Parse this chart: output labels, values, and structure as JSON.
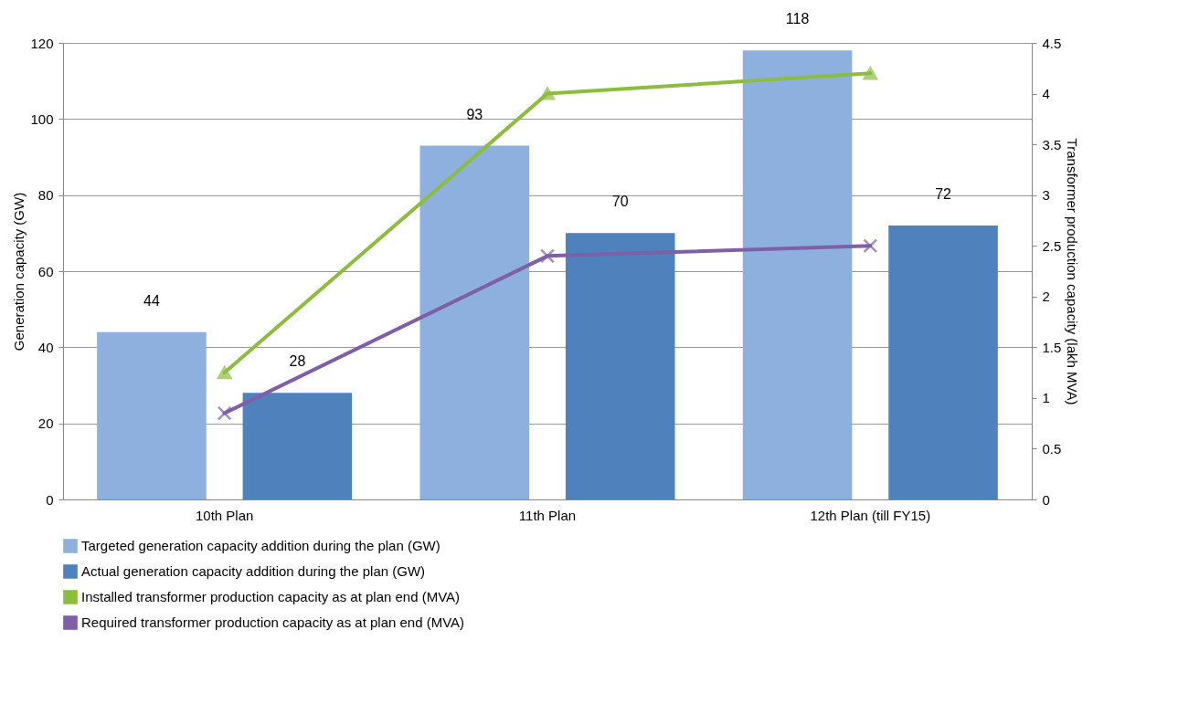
{
  "chart_data": {
    "type": "bar",
    "categories": [
      "10th Plan",
      "11th Plan",
      "12th Plan (till  FY15)"
    ],
    "ylabel": "Generation capacity (GW)",
    "y2label": "Transformer production capacity (lakh MVA)",
    "ylim": [
      0,
      120
    ],
    "yticks": [
      0,
      20,
      40,
      60,
      80,
      100,
      120
    ],
    "y2lim": [
      0,
      4.5
    ],
    "y2ticks": [
      0,
      0.5,
      1,
      1.5,
      2,
      2.5,
      3,
      3.5,
      4,
      4.5
    ],
    "grid": "y",
    "legend": "bottom",
    "series": [
      {
        "name": "Targeted generation capacity addition during the plan (GW)",
        "color": "#8eb0de",
        "values": [
          44,
          93,
          118
        ],
        "value_labels": [
          "44",
          "93",
          "118"
        ]
      },
      {
        "name": "Actual generation capacity addition during the plan (GW)",
        "color": "#4f81bd",
        "values": [
          28,
          70,
          72
        ],
        "value_labels": [
          "28",
          "70",
          "72"
        ]
      },
      {
        "name": "Installed transformer production capacity as at plan end (MVA)",
        "type": "line",
        "axis": "y2",
        "color": "#8cbd3f",
        "marker": "triangle",
        "values": [
          1.25,
          4.0,
          4.2
        ]
      },
      {
        "name": "Required transformer production capacity as at plan end (MVA)",
        "type": "line",
        "axis": "y2",
        "color": "#7f5fa8",
        "marker": "cross",
        "values": [
          0.85,
          2.4,
          2.5
        ]
      }
    ]
  }
}
